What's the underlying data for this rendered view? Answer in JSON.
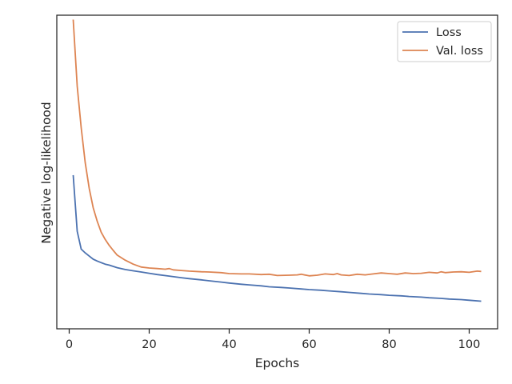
{
  "chart_data": {
    "type": "line",
    "xlabel": "Epochs",
    "ylabel": "Negative log-likelihood",
    "xlim": [
      -3.1,
      107.1
    ],
    "xticks": [
      0,
      20,
      40,
      60,
      80,
      100
    ],
    "ylim": [
      0,
      1
    ],
    "yticks_shown": false,
    "grid": false,
    "legend_position": "top-right",
    "colors": {
      "Loss": "#4c72b0",
      "Val. loss": "#dd8452",
      "axes": "#262626"
    },
    "series": [
      {
        "name": "Loss",
        "x": [
          1,
          2,
          3,
          4,
          5,
          6,
          7,
          8,
          9,
          10,
          12,
          14,
          16,
          18,
          20,
          22,
          25,
          28,
          30,
          33,
          35,
          38,
          40,
          43,
          45,
          48,
          50,
          53,
          55,
          58,
          60,
          63,
          65,
          68,
          70,
          73,
          75,
          78,
          80,
          83,
          85,
          88,
          90,
          93,
          95,
          98,
          100,
          103
        ],
        "y": [
          0.49,
          0.311,
          0.254,
          0.242,
          0.232,
          0.222,
          0.216,
          0.211,
          0.206,
          0.203,
          0.195,
          0.189,
          0.185,
          0.181,
          0.177,
          0.173,
          0.168,
          0.163,
          0.16,
          0.156,
          0.153,
          0.149,
          0.146,
          0.142,
          0.14,
          0.137,
          0.134,
          0.132,
          0.13,
          0.127,
          0.125,
          0.123,
          0.121,
          0.118,
          0.116,
          0.113,
          0.111,
          0.109,
          0.107,
          0.105,
          0.103,
          0.101,
          0.099,
          0.097,
          0.095,
          0.093,
          0.091,
          0.088
        ]
      },
      {
        "name": "Val. loss",
        "x": [
          1,
          2,
          3,
          4,
          5,
          6,
          7,
          8,
          9,
          10,
          11,
          12,
          14,
          16,
          18,
          20,
          22,
          24,
          25,
          26,
          28,
          30,
          33,
          35,
          38,
          40,
          43,
          45,
          48,
          50,
          52,
          55,
          57,
          58,
          60,
          62,
          64,
          66,
          67,
          68,
          70,
          72,
          74,
          76,
          78,
          80,
          82,
          84,
          86,
          88,
          90,
          92,
          93,
          94,
          96,
          98,
          100,
          102,
          103
        ],
        "y": [
          0.986,
          0.774,
          0.641,
          0.53,
          0.448,
          0.386,
          0.343,
          0.308,
          0.285,
          0.266,
          0.25,
          0.235,
          0.219,
          0.206,
          0.197,
          0.194,
          0.192,
          0.19,
          0.192,
          0.188,
          0.186,
          0.184,
          0.182,
          0.181,
          0.179,
          0.176,
          0.175,
          0.175,
          0.173,
          0.174,
          0.17,
          0.171,
          0.172,
          0.174,
          0.169,
          0.171,
          0.175,
          0.173,
          0.176,
          0.172,
          0.17,
          0.174,
          0.172,
          0.175,
          0.178,
          0.176,
          0.174,
          0.178,
          0.176,
          0.177,
          0.18,
          0.178,
          0.182,
          0.179,
          0.181,
          0.182,
          0.18,
          0.184,
          0.183
        ]
      }
    ]
  }
}
